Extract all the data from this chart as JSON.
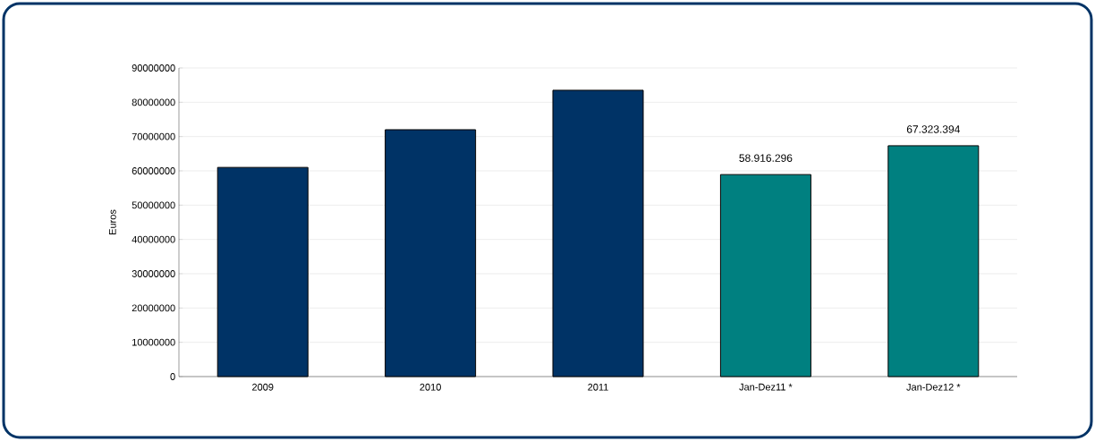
{
  "chart_data": {
    "type": "bar",
    "ylabel": "Euros",
    "categories": [
      "2009",
      "2010",
      "2011",
      "Jan-Dez11  *",
      "Jan-Dez12  *"
    ],
    "values": [
      61000000,
      72000000,
      83500000,
      58916296,
      67323394
    ],
    "colors": [
      "#003366",
      "#003366",
      "#003366",
      "#008080",
      "#008080"
    ],
    "value_labels": [
      null,
      null,
      null,
      "58.916.296",
      "67.323.394"
    ],
    "ylim": [
      0,
      90000000
    ],
    "yticks": [
      0,
      10000000,
      20000000,
      30000000,
      40000000,
      50000000,
      60000000,
      70000000,
      80000000,
      90000000
    ],
    "grid": "y"
  }
}
